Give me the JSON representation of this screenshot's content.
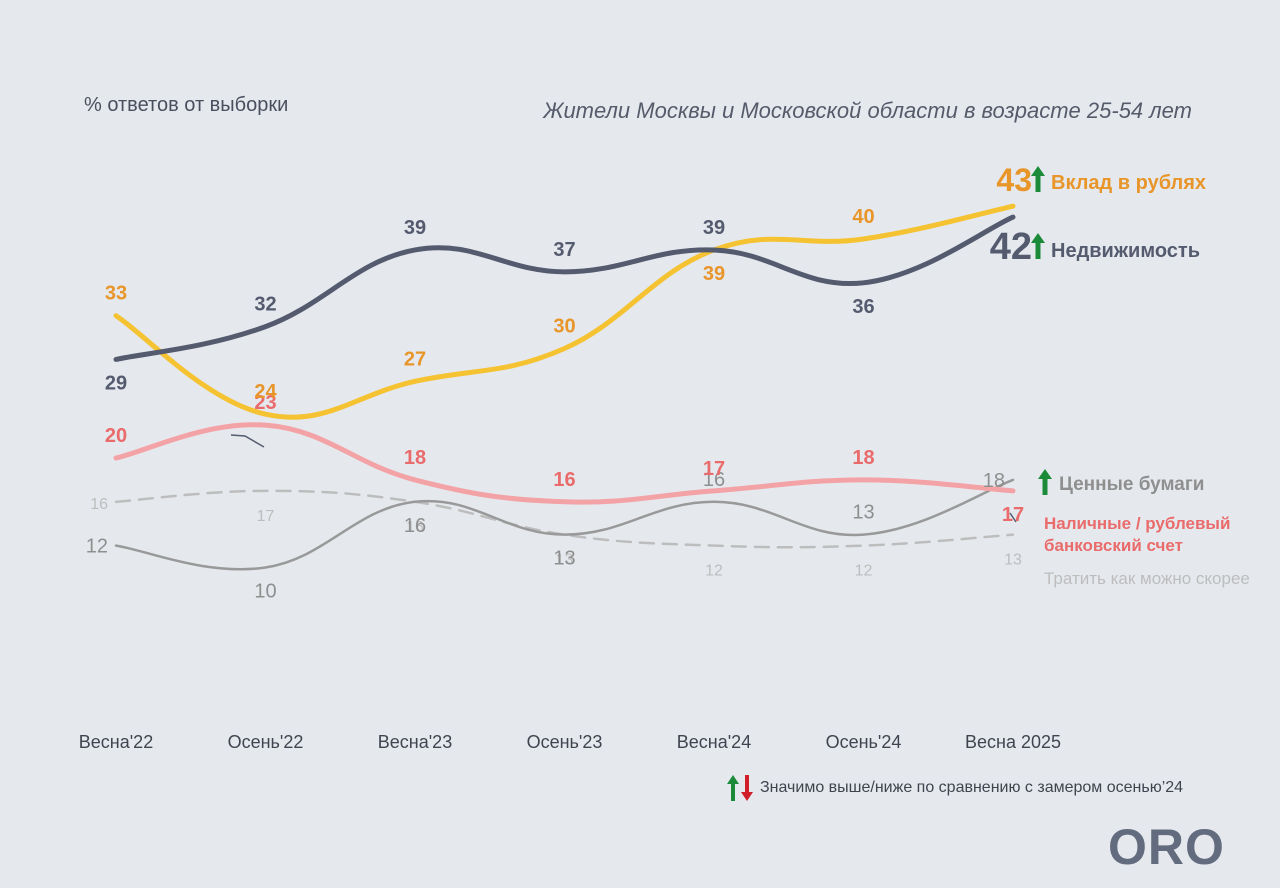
{
  "header": {
    "subtitle": "% ответов от выборки",
    "title": "Жители Москвы и Московской области в возрасте 25-54 лет"
  },
  "legend_note": "Значимо выше/ниже по сравнению с замером осенью’24",
  "logo_text": "ORO",
  "colors": {
    "background": "#e5e9ee",
    "deposit": "#f5c232",
    "deposit_label": "#e8952a",
    "realty": "#555b6f",
    "securities": "#999999",
    "cash": "#f3a3a6",
    "cash_label": "#ea6b6b",
    "spend": "#bdbdbd",
    "up_arrow": "#1b8b3a",
    "down_arrow": "#d11f2a"
  },
  "chart_data": {
    "type": "line",
    "categories": [
      "Весна'22",
      "Осень'22",
      "Весна'23",
      "Осень'23",
      "Весна'24",
      "Осень'24",
      "Весна 2025"
    ],
    "ylabel": "% ответов от выборки",
    "ylim": [
      0,
      50
    ],
    "series": [
      {
        "name": "Вклад в рублях",
        "key": "deposit",
        "values": [
          33,
          24,
          27,
          30,
          39,
          40,
          43
        ],
        "arrow": "up"
      },
      {
        "name": "Недвижимость",
        "key": "realty",
        "values": [
          29,
          32,
          39,
          37,
          39,
          36,
          42
        ],
        "arrow": "up"
      },
      {
        "name": "Ценные бумаги",
        "key": "securities",
        "values": [
          12,
          10,
          16,
          13,
          16,
          13,
          18
        ],
        "arrow": "up"
      },
      {
        "name": "Наличные / рублевый банковский счет",
        "key": "cash",
        "values": [
          20,
          23,
          18,
          16,
          17,
          18,
          17
        ],
        "arrow": null
      },
      {
        "name": "Тратить как можно скорее",
        "key": "spend",
        "values": [
          16,
          17,
          16,
          13,
          12,
          12,
          13
        ],
        "arrow": null,
        "dashed": true
      }
    ]
  }
}
